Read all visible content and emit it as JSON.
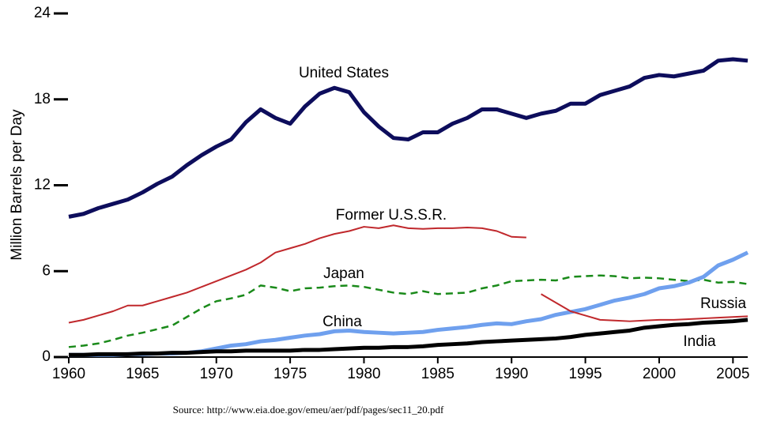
{
  "chart_data": {
    "type": "line",
    "y_label": "Million Barrels per Day",
    "source": "Source: http://www.eia.doe.gov/emeu/aer/pdf/pages/sec11_20.pdf",
    "xlim": [
      1960,
      2006
    ],
    "xticks": [
      1960,
      1965,
      1970,
      1975,
      1980,
      1985,
      1990,
      1995,
      2000,
      2005
    ],
    "ylim": [
      0,
      24
    ],
    "yticks": [
      0,
      6,
      12,
      18,
      24
    ],
    "x": [
      1960,
      1961,
      1962,
      1963,
      1964,
      1965,
      1966,
      1967,
      1968,
      1969,
      1970,
      1971,
      1972,
      1973,
      1974,
      1975,
      1976,
      1977,
      1978,
      1979,
      1980,
      1981,
      1982,
      1983,
      1984,
      1985,
      1986,
      1987,
      1988,
      1989,
      1990,
      1991,
      1992,
      1993,
      1994,
      1995,
      1996,
      1997,
      1998,
      1999,
      2000,
      2001,
      2002,
      2003,
      2004,
      2005,
      2006
    ],
    "series": [
      {
        "name": "United States",
        "color": "#0d0d5c",
        "width": 5,
        "dashed": false,
        "values": [
          9.8,
          10.0,
          10.4,
          10.7,
          11.0,
          11.5,
          12.1,
          12.6,
          13.4,
          14.1,
          14.7,
          15.2,
          16.4,
          17.3,
          16.7,
          16.3,
          17.5,
          18.4,
          18.8,
          18.5,
          17.1,
          16.1,
          15.3,
          15.2,
          15.7,
          15.7,
          16.3,
          16.7,
          17.3,
          17.3,
          17.0,
          16.7,
          17.0,
          17.2,
          17.7,
          17.7,
          18.3,
          18.6,
          18.9,
          19.5,
          19.7,
          19.6,
          19.8,
          20.0,
          20.7,
          20.8,
          20.7
        ]
      },
      {
        "name": "Former U.S.S.R.",
        "color": "#c0282c",
        "width": 2,
        "dashed": false,
        "values": [
          2.4,
          2.6,
          2.9,
          3.2,
          3.6,
          3.6,
          3.9,
          4.2,
          4.5,
          4.9,
          5.3,
          5.7,
          6.1,
          6.6,
          7.3,
          7.6,
          7.9,
          8.3,
          8.6,
          8.8,
          9.1,
          9.0,
          9.2,
          9.0,
          8.95,
          9.0,
          9.0,
          9.05,
          9.0,
          8.8,
          8.4,
          8.35,
          null,
          null,
          null,
          null,
          null,
          null,
          null,
          null,
          null,
          null,
          null,
          null,
          null,
          null,
          null
        ]
      },
      {
        "name": "Japan",
        "color": "#1a8a1a",
        "width": 2.5,
        "dashed": true,
        "values": [
          0.7,
          0.8,
          0.95,
          1.2,
          1.5,
          1.7,
          1.95,
          2.2,
          2.8,
          3.4,
          3.9,
          4.1,
          4.35,
          5.0,
          4.85,
          4.6,
          4.8,
          4.85,
          4.95,
          5.0,
          4.9,
          4.7,
          4.5,
          4.4,
          4.6,
          4.4,
          4.45,
          4.5,
          4.8,
          5.0,
          5.3,
          5.35,
          5.4,
          5.35,
          5.6,
          5.65,
          5.7,
          5.65,
          5.5,
          5.55,
          5.5,
          5.4,
          5.3,
          5.4,
          5.2,
          5.25,
          5.1
        ]
      },
      {
        "name": "China",
        "color": "#6fa0ee",
        "width": 5,
        "dashed": false,
        "values": [
          0.15,
          0.15,
          0.15,
          0.15,
          0.2,
          0.2,
          0.25,
          0.25,
          0.3,
          0.4,
          0.6,
          0.8,
          0.9,
          1.1,
          1.2,
          1.35,
          1.5,
          1.6,
          1.8,
          1.85,
          1.75,
          1.7,
          1.65,
          1.7,
          1.75,
          1.9,
          2.0,
          2.1,
          2.25,
          2.35,
          2.3,
          2.5,
          2.65,
          2.95,
          3.15,
          3.35,
          3.65,
          3.95,
          4.15,
          4.4,
          4.8,
          4.95,
          5.2,
          5.6,
          6.4,
          6.8,
          7.3
        ]
      },
      {
        "name": "Russia",
        "color": "#c0282c",
        "width": 2,
        "dashed": false,
        "values": [
          null,
          null,
          null,
          null,
          null,
          null,
          null,
          null,
          null,
          null,
          null,
          null,
          null,
          null,
          null,
          null,
          null,
          null,
          null,
          null,
          null,
          null,
          null,
          null,
          null,
          null,
          null,
          null,
          null,
          null,
          null,
          null,
          4.4,
          3.8,
          3.2,
          2.9,
          2.6,
          2.55,
          2.5,
          2.55,
          2.6,
          2.6,
          2.65,
          2.7,
          2.75,
          2.8,
          2.85
        ]
      },
      {
        "name": "India",
        "color": "#000000",
        "width": 5,
        "dashed": false,
        "values": [
          0.15,
          0.15,
          0.2,
          0.2,
          0.2,
          0.25,
          0.25,
          0.3,
          0.3,
          0.35,
          0.4,
          0.4,
          0.45,
          0.45,
          0.45,
          0.45,
          0.5,
          0.5,
          0.55,
          0.6,
          0.65,
          0.65,
          0.7,
          0.7,
          0.75,
          0.85,
          0.9,
          0.95,
          1.05,
          1.1,
          1.15,
          1.2,
          1.25,
          1.3,
          1.4,
          1.55,
          1.65,
          1.75,
          1.85,
          2.05,
          2.15,
          2.25,
          2.3,
          2.4,
          2.45,
          2.5,
          2.6
        ]
      }
    ]
  }
}
